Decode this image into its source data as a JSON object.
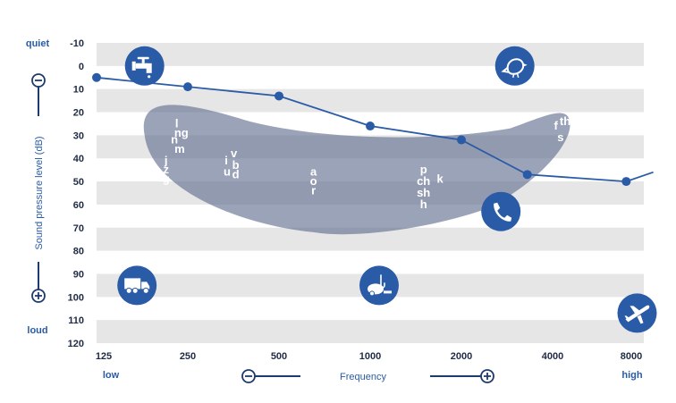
{
  "chart_data": {
    "type": "line",
    "x_axis": {
      "label": "Frequency",
      "scale": "log",
      "ticks": [
        125,
        250,
        500,
        1000,
        2000,
        4000,
        8000
      ],
      "low_label": "low",
      "high_label": "high"
    },
    "y_axis": {
      "label": "Sound pressure level (dB)",
      "ticks": [
        -10,
        0,
        10,
        20,
        30,
        40,
        50,
        60,
        70,
        80,
        90,
        100,
        110,
        120
      ],
      "range": [
        -10,
        120
      ],
      "top_label": "quiet",
      "bottom_label": "loud"
    },
    "grid": "alternating bands",
    "series": [
      {
        "points": [
          {
            "x": 125,
            "y": 5
          },
          {
            "x": 250,
            "y": 9
          },
          {
            "x": 500,
            "y": 13
          },
          {
            "x": 1000,
            "y": 26
          },
          {
            "x": 2000,
            "y": 32
          },
          {
            "x": 3300,
            "y": 47
          },
          {
            "x": 7000,
            "y": 50
          },
          {
            "x": 8600,
            "y": 46
          }
        ]
      }
    ],
    "phonemes": [
      {
        "text": "l",
        "x": 230,
        "y": 25
      },
      {
        "text": "ng",
        "x": 238,
        "y": 29
      },
      {
        "text": "n",
        "x": 226,
        "y": 32
      },
      {
        "text": "m",
        "x": 235,
        "y": 36
      },
      {
        "text": "j",
        "x": 212,
        "y": 41
      },
      {
        "text": "z",
        "x": 212,
        "y": 45
      },
      {
        "text": "g",
        "x": 212,
        "y": 49
      },
      {
        "text": "v",
        "x": 355,
        "y": 38
      },
      {
        "text": "i",
        "x": 335,
        "y": 41
      },
      {
        "text": "b",
        "x": 360,
        "y": 43
      },
      {
        "text": "u",
        "x": 337,
        "y": 46
      },
      {
        "text": "d",
        "x": 360,
        "y": 47
      },
      {
        "text": "a",
        "x": 650,
        "y": 46
      },
      {
        "text": "o",
        "x": 650,
        "y": 50
      },
      {
        "text": "r",
        "x": 650,
        "y": 54
      },
      {
        "text": "p",
        "x": 1500,
        "y": 45
      },
      {
        "text": "k",
        "x": 1700,
        "y": 49
      },
      {
        "text": "ch",
        "x": 1500,
        "y": 50
      },
      {
        "text": "sh",
        "x": 1500,
        "y": 55
      },
      {
        "text": "h",
        "x": 1500,
        "y": 60
      },
      {
        "text": "f",
        "x": 4100,
        "y": 26
      },
      {
        "text": "th",
        "x": 4400,
        "y": 24
      },
      {
        "text": "s",
        "x": 4250,
        "y": 31
      }
    ],
    "icons": [
      {
        "name": "faucet-icon",
        "x": 180,
        "y": 0
      },
      {
        "name": "bird-icon",
        "x": 3000,
        "y": 0
      },
      {
        "name": "phone-icon",
        "x": 2700,
        "y": 63
      },
      {
        "name": "truck-icon",
        "x": 170,
        "y": 95
      },
      {
        "name": "vacuum-icon",
        "x": 1070,
        "y": 95
      },
      {
        "name": "airplane-icon",
        "x": 7600,
        "y": 107
      }
    ],
    "colors": {
      "line": "#2a5ba6",
      "band": "#e6e6e6",
      "banana": "#5e6a8c",
      "icon_bg": "#2a5ba6",
      "tick_text": "#1f2a44",
      "accent_text": "#2a5ba6"
    }
  }
}
